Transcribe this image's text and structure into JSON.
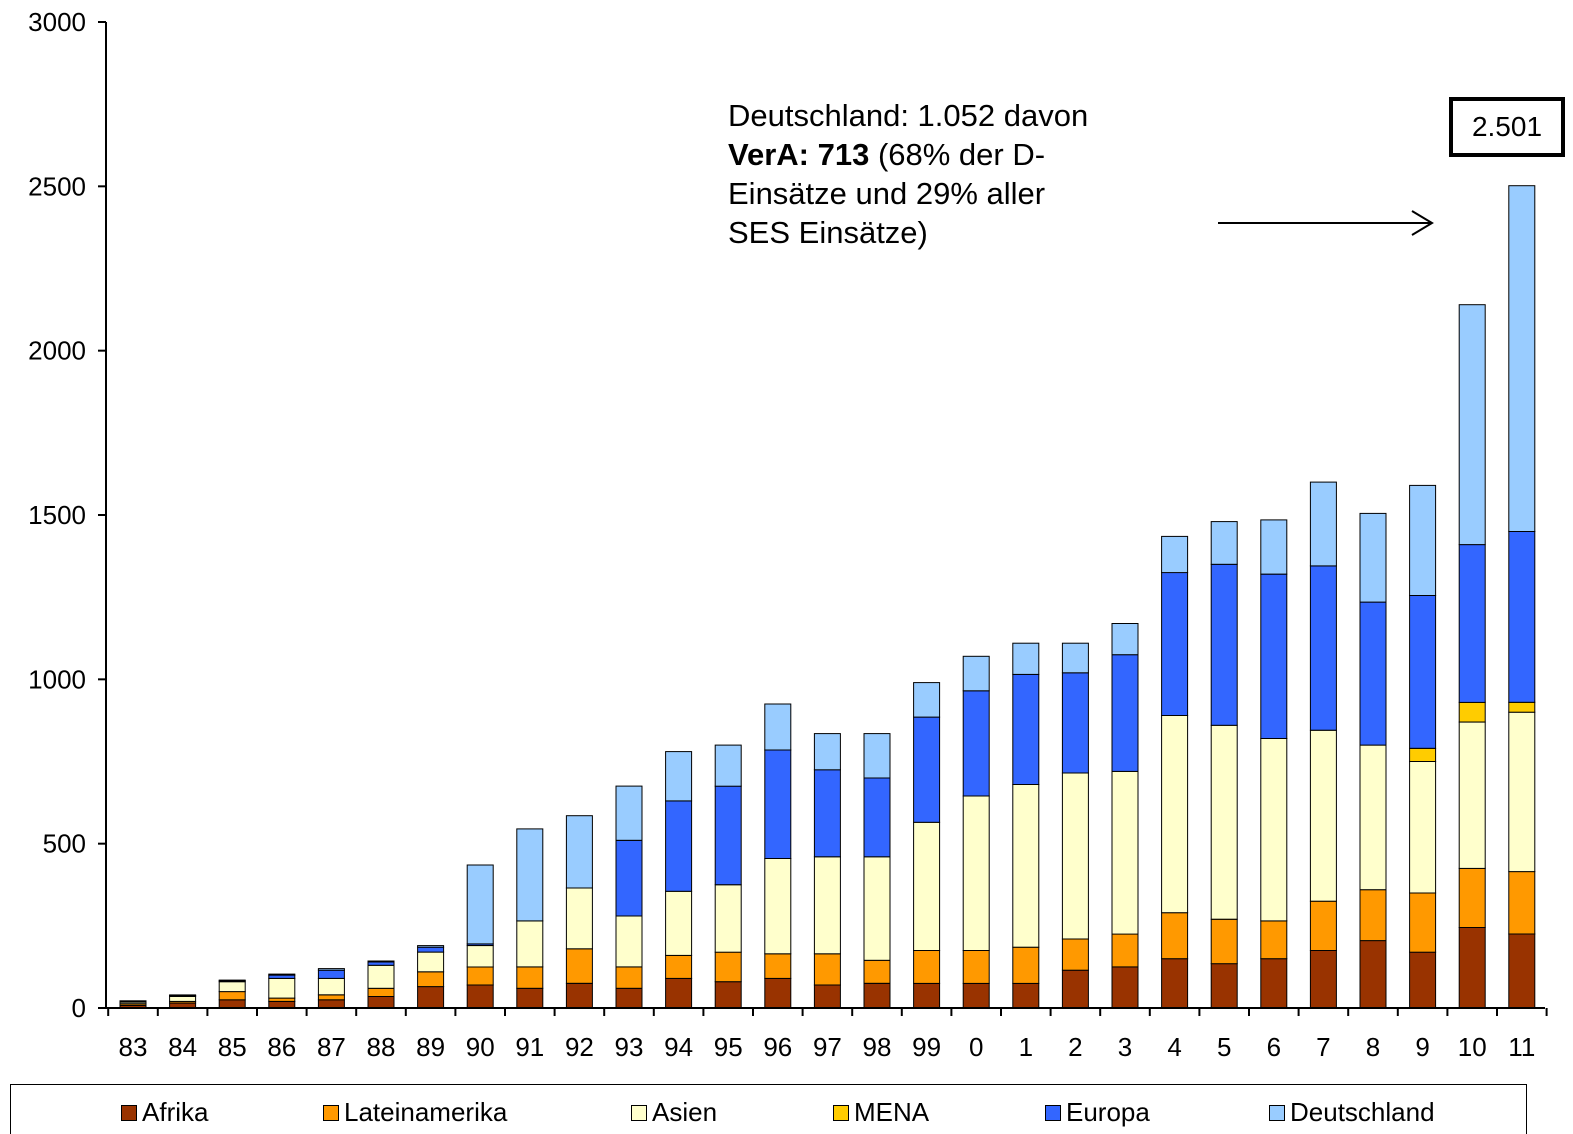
{
  "chart_data": {
    "type": "bar",
    "stacked": true,
    "categories": [
      "83",
      "84",
      "85",
      "86",
      "87",
      "88",
      "89",
      "90",
      "91",
      "92",
      "93",
      "94",
      "95",
      "96",
      "97",
      "98",
      "99",
      "0",
      "1",
      "2",
      "3",
      "4",
      "5",
      "6",
      "7",
      "8",
      "9",
      "10",
      "11"
    ],
    "yticks": [
      "0",
      "500",
      "1000",
      "1500",
      "2000",
      "2500",
      "3000"
    ],
    "ylim": [
      0,
      3000
    ],
    "series": [
      {
        "name": "Afrika",
        "color": "#993300",
        "values": [
          8,
          15,
          25,
          20,
          25,
          35,
          65,
          70,
          60,
          75,
          60,
          90,
          80,
          90,
          70,
          75,
          75,
          75,
          75,
          115,
          125,
          150,
          135,
          150,
          175,
          205,
          170,
          245,
          225
        ]
      },
      {
        "name": "Lateinamerika",
        "color": "#FF9900",
        "values": [
          5,
          5,
          25,
          10,
          15,
          25,
          45,
          55,
          65,
          105,
          65,
          70,
          90,
          75,
          95,
          70,
          100,
          100,
          110,
          95,
          100,
          140,
          135,
          115,
          150,
          155,
          180,
          180,
          190
        ]
      },
      {
        "name": "Asien",
        "color": "#FFFFCC",
        "values": [
          5,
          15,
          30,
          60,
          50,
          70,
          60,
          65,
          140,
          185,
          155,
          195,
          205,
          290,
          295,
          315,
          390,
          470,
          495,
          505,
          495,
          600,
          590,
          555,
          520,
          440,
          400,
          445,
          485
        ]
      },
      {
        "name": "MENA",
        "color": "#FFCC00",
        "values": [
          0,
          0,
          0,
          0,
          0,
          0,
          0,
          0,
          0,
          0,
          0,
          0,
          0,
          0,
          0,
          0,
          0,
          0,
          0,
          0,
          0,
          0,
          0,
          0,
          0,
          0,
          40,
          60,
          30
        ]
      },
      {
        "name": "Europa",
        "color": "#3366FF",
        "values": [
          2,
          3,
          3,
          10,
          25,
          10,
          15,
          5,
          0,
          0,
          230,
          275,
          300,
          330,
          265,
          240,
          320,
          320,
          335,
          305,
          355,
          435,
          490,
          500,
          500,
          435,
          465,
          480,
          520
        ]
      },
      {
        "name": "Deutschland",
        "color": "#99CCFF",
        "values": [
          2,
          2,
          2,
          3,
          5,
          3,
          5,
          240,
          280,
          220,
          165,
          150,
          125,
          140,
          110,
          135,
          105,
          105,
          95,
          90,
          95,
          110,
          130,
          165,
          255,
          270,
          335,
          730,
          1052
        ]
      }
    ],
    "annotation": {
      "line1": "Deutschland: 1.052 davon",
      "line2_bold": "VerA: 713",
      "line2_rest": " (68% der D-",
      "line3": "Einsätze und  29% aller",
      "line4": "SES Einsätze)"
    },
    "total_label": "2.501",
    "legend_position": "bottom",
    "grid": false
  }
}
